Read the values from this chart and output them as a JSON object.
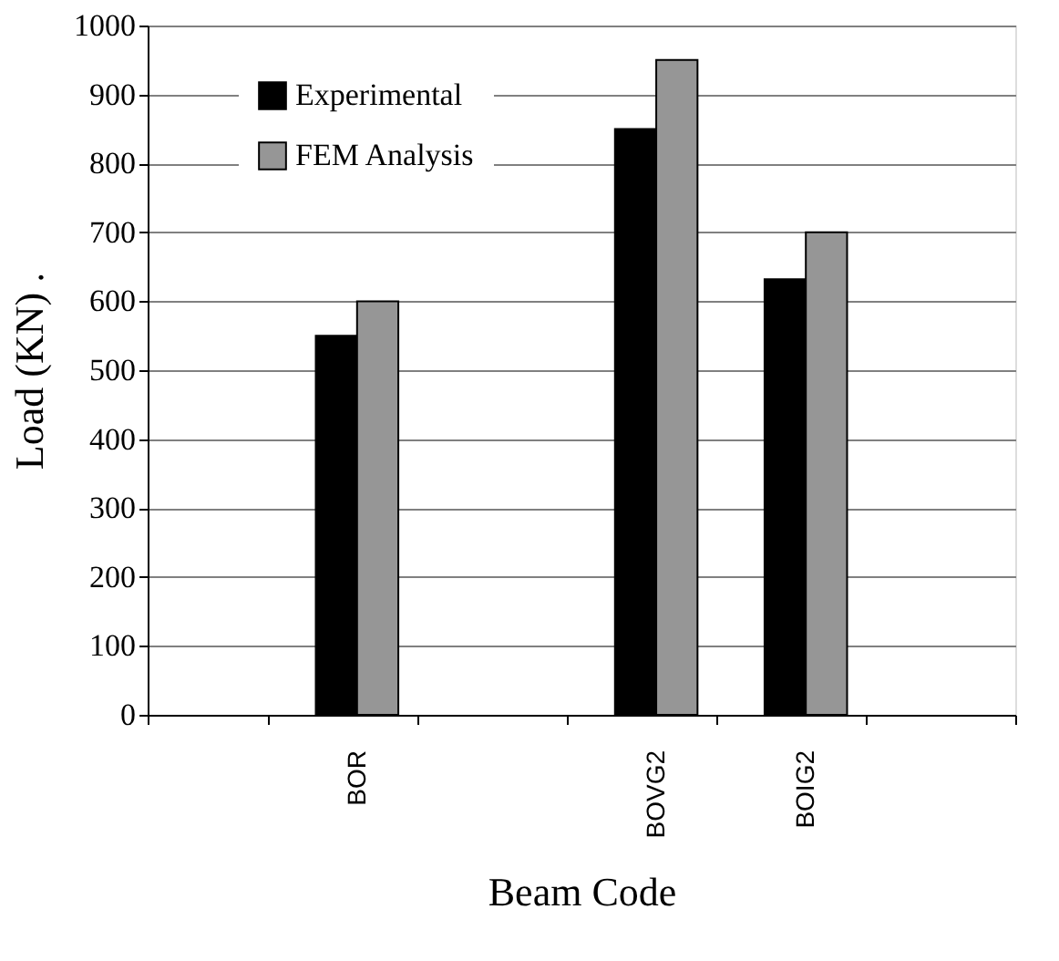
{
  "chart_data": {
    "type": "bar",
    "xlabel": "Beam Code",
    "ylabel": "Load (KN) .",
    "categories": [
      null,
      "BOR",
      null,
      "BOVG2",
      "BOIG2",
      null
    ],
    "series": [
      {
        "name": "Experimental",
        "color": "#000000",
        "values": [
          null,
          550,
          null,
          850,
          632,
          null
        ]
      },
      {
        "name": "FEM Analysis",
        "color": "#969696",
        "values": [
          null,
          600,
          null,
          950,
          700,
          null
        ]
      }
    ],
    "ylim": [
      0,
      1000
    ],
    "yticks": [
      0,
      100,
      200,
      300,
      400,
      500,
      600,
      700,
      800,
      900,
      1000
    ],
    "grid": "y",
    "legend": "top left"
  }
}
